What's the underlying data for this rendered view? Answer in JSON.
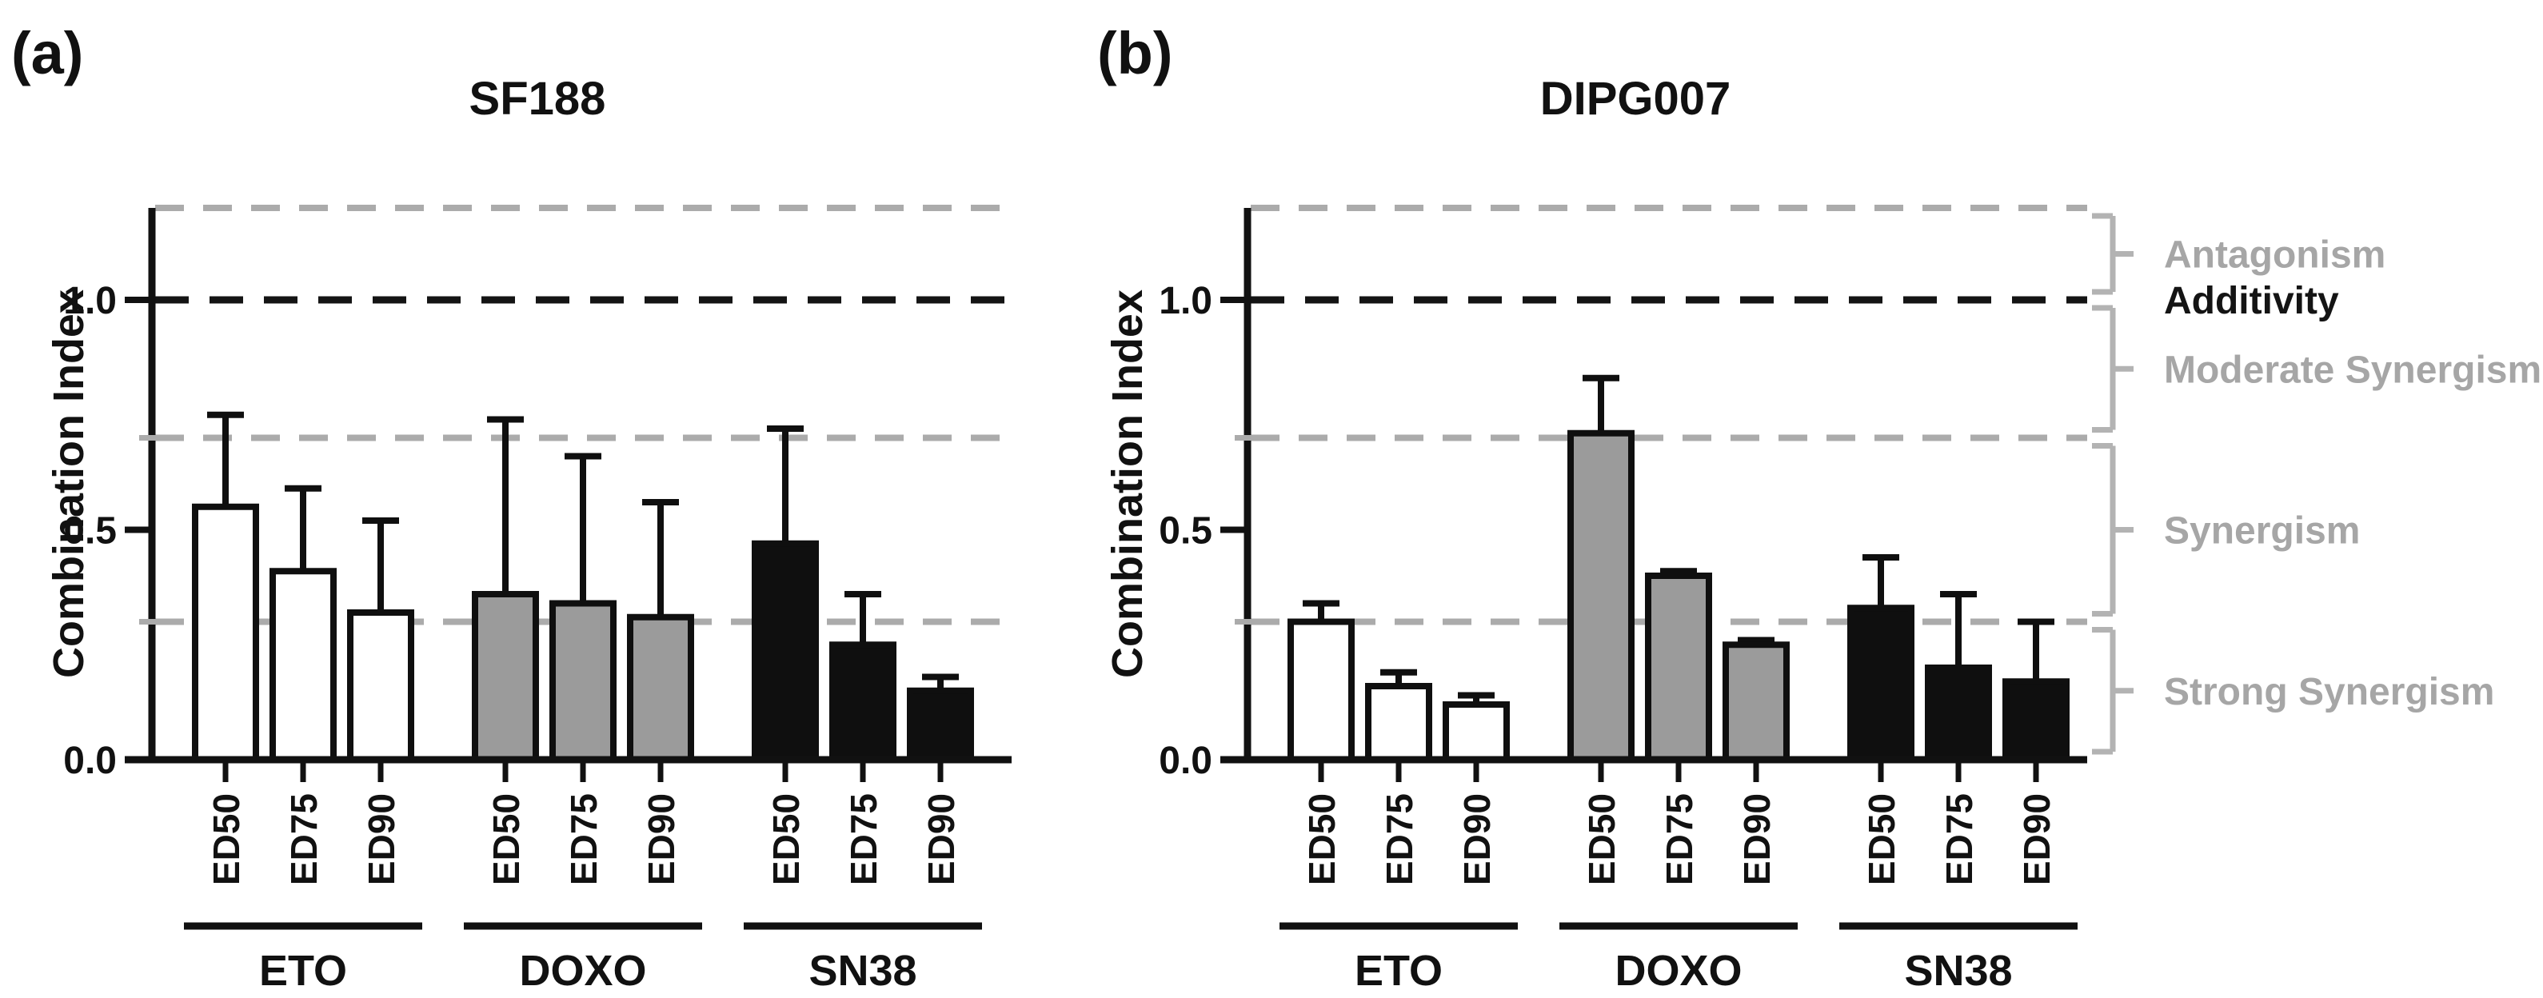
{
  "figure_labels": {
    "panel_a_letter": "(a)",
    "panel_b_letter": "(b)"
  },
  "chart_data": [
    {
      "type": "bar",
      "panel_letter": "(a)",
      "title": "SF188",
      "ylabel": "Combination Index",
      "ylim": [
        0,
        1.28
      ],
      "grid": false,
      "yticks": [
        {
          "value": 0.0,
          "label": "0.0"
        },
        {
          "value": 0.5,
          "label": "0.5"
        },
        {
          "value": 1.0,
          "label": "1.0"
        }
      ],
      "minor_yticks": [
        0.3,
        0.7
      ],
      "categories": [
        "ED50",
        "ED75",
        "ED90"
      ],
      "series": [
        {
          "name": "ETO",
          "fill": "#ffffff",
          "values": [
            0.55,
            0.41,
            0.32
          ],
          "errors_up": [
            0.2,
            0.18,
            0.2
          ]
        },
        {
          "name": "DOXO",
          "fill": "#9b9b9b",
          "values": [
            0.36,
            0.34,
            0.31
          ],
          "errors_up": [
            0.38,
            0.32,
            0.25
          ]
        },
        {
          "name": "SN38",
          "fill": "#0f0f0f",
          "values": [
            0.47,
            0.25,
            0.15
          ],
          "errors_up": [
            0.25,
            0.11,
            0.03
          ]
        }
      ],
      "reference_lines": [
        {
          "value": 1.2,
          "color": "#ababab",
          "style": "dashed"
        },
        {
          "value": 1.0,
          "color": "#141414",
          "style": "dashed"
        },
        {
          "value": 0.7,
          "color": "#ababab",
          "style": "dashed"
        },
        {
          "value": 0.3,
          "color": "#ababab",
          "style": "dashed"
        }
      ]
    },
    {
      "type": "bar",
      "panel_letter": "(b)",
      "title": "DIPG007",
      "ylabel": "Combination Index",
      "ylim": [
        0,
        1.28
      ],
      "grid": false,
      "yticks": [
        {
          "value": 0.0,
          "label": "0.0"
        },
        {
          "value": 0.5,
          "label": "0.5"
        },
        {
          "value": 1.0,
          "label": "1.0"
        }
      ],
      "minor_yticks": [
        0.3,
        0.7
      ],
      "categories": [
        "ED50",
        "ED75",
        "ED90"
      ],
      "series": [
        {
          "name": "ETO",
          "fill": "#ffffff",
          "values": [
            0.3,
            0.16,
            0.12
          ],
          "errors_up": [
            0.04,
            0.03,
            0.02
          ]
        },
        {
          "name": "DOXO",
          "fill": "#9b9b9b",
          "values": [
            0.71,
            0.4,
            0.25
          ],
          "errors_up": [
            0.12,
            0.01,
            0.01
          ]
        },
        {
          "name": "SN38",
          "fill": "#0f0f0f",
          "values": [
            0.33,
            0.2,
            0.17
          ],
          "errors_up": [
            0.11,
            0.16,
            0.13
          ]
        }
      ],
      "reference_lines": [
        {
          "value": 1.2,
          "color": "#ababab",
          "style": "dashed"
        },
        {
          "value": 1.0,
          "color": "#141414",
          "style": "dashed"
        },
        {
          "value": 0.7,
          "color": "#ababab",
          "style": "dashed"
        },
        {
          "value": 0.3,
          "color": "#ababab",
          "style": "dashed"
        }
      ]
    }
  ],
  "side_annotations": [
    {
      "text": "Antagonism",
      "color": "#a6a6a6",
      "band": [
        1.0,
        1.2
      ],
      "bracket": true
    },
    {
      "text": "Additivity",
      "color": "#141414",
      "at": 1.0,
      "bracket": false
    },
    {
      "text": "Moderate Synergism",
      "color": "#a6a6a6",
      "band": [
        0.7,
        1.0
      ],
      "bracket": true
    },
    {
      "text": "Synergism",
      "color": "#a6a6a6",
      "band": [
        0.3,
        0.7
      ],
      "bracket": true
    },
    {
      "text": "Strong Synergism",
      "color": "#a6a6a6",
      "band": [
        0.0,
        0.3
      ],
      "bracket": true
    }
  ]
}
